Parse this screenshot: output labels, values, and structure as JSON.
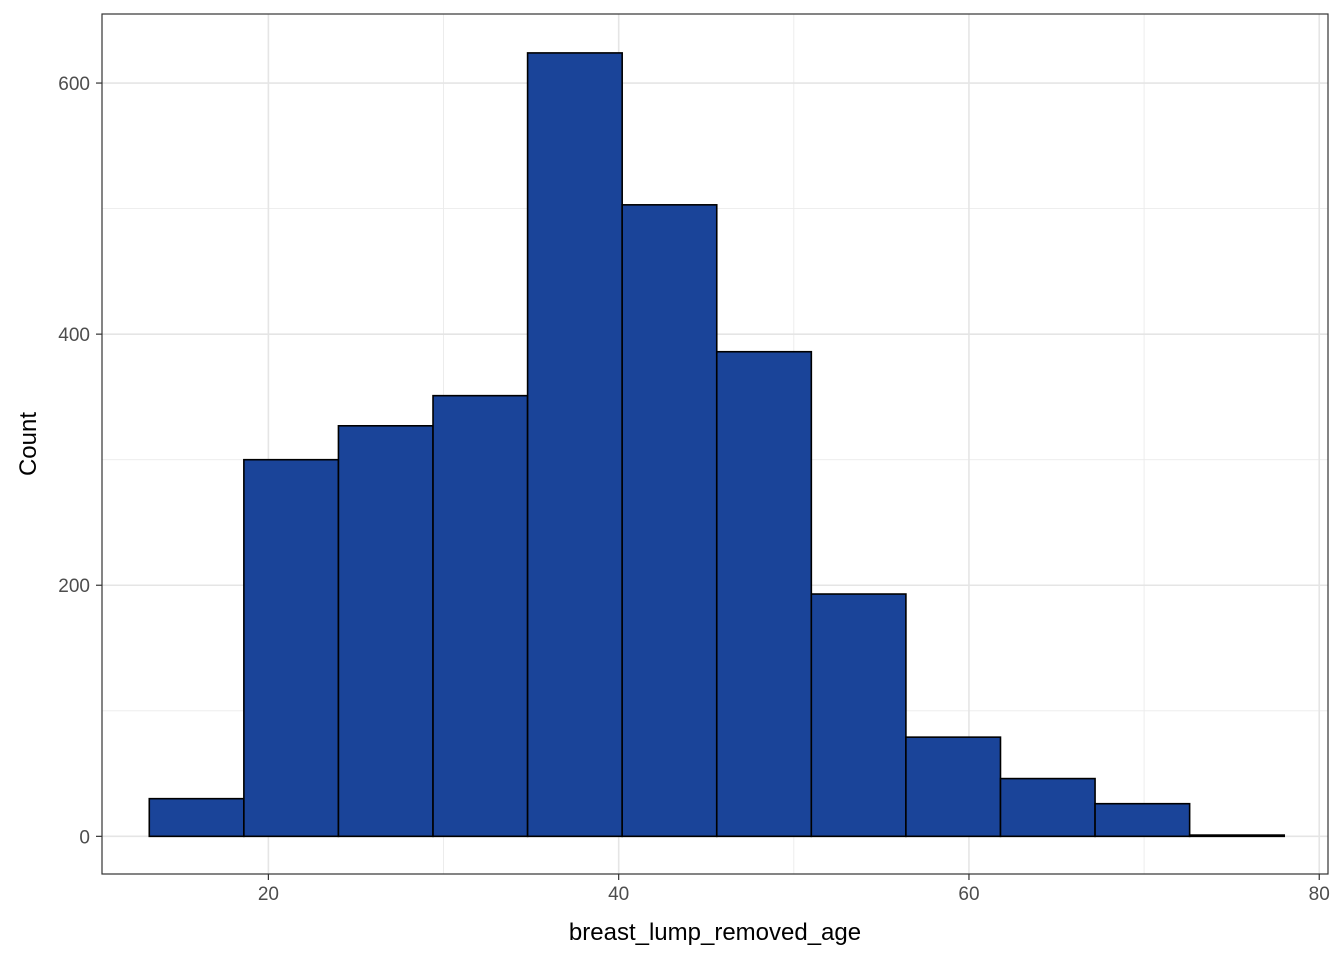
{
  "chart_data": {
    "type": "histogram",
    "title": "",
    "xlabel": "breast_lump_removed_age",
    "ylabel": "Count",
    "xlim": [
      10.5,
      80.5
    ],
    "ylim": [
      -30,
      655
    ],
    "xticks": [
      20,
      40,
      60,
      80
    ],
    "yticks": [
      0,
      200,
      400,
      600
    ],
    "grid": true,
    "fill_color": "#1a4499",
    "edge_color": "#000000",
    "bins": [
      {
        "x0": 13.2,
        "x1": 18.6,
        "count": 30
      },
      {
        "x0": 18.6,
        "x1": 24.0,
        "count": 300
      },
      {
        "x0": 24.0,
        "x1": 29.4,
        "count": 327
      },
      {
        "x0": 29.4,
        "x1": 34.8,
        "count": 351
      },
      {
        "x0": 34.8,
        "x1": 40.2,
        "count": 624
      },
      {
        "x0": 40.2,
        "x1": 45.6,
        "count": 503
      },
      {
        "x0": 45.6,
        "x1": 51.0,
        "count": 386
      },
      {
        "x0": 51.0,
        "x1": 56.4,
        "count": 193
      },
      {
        "x0": 56.4,
        "x1": 61.8,
        "count": 79
      },
      {
        "x0": 61.8,
        "x1": 67.2,
        "count": 46
      },
      {
        "x0": 67.2,
        "x1": 72.6,
        "count": 26
      },
      {
        "x0": 72.6,
        "x1": 78.0,
        "count": 1
      }
    ]
  }
}
